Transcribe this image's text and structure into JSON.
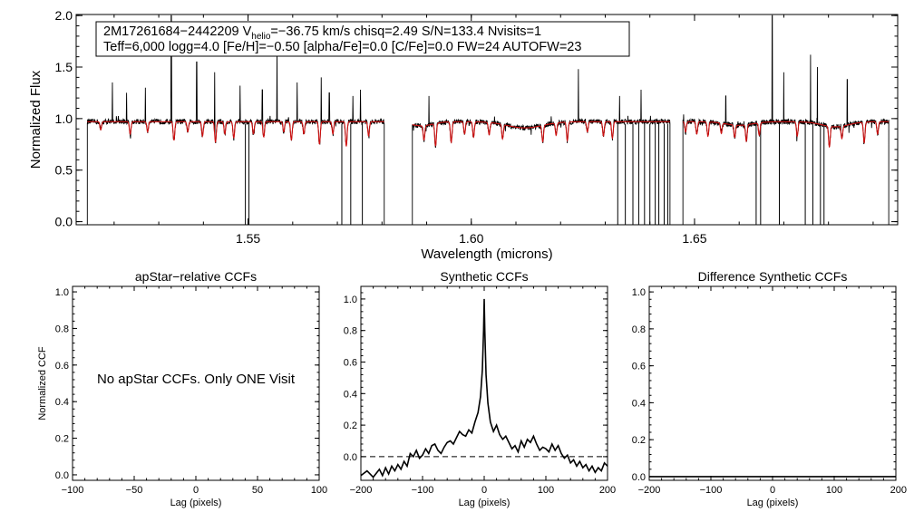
{
  "colors": {
    "observed": "#000000",
    "model": "#d01010",
    "axes": "#000000"
  },
  "chart_data": [
    {
      "type": "line",
      "panel": "spectrum",
      "title": "",
      "xlabel": "Wavelength (microns)",
      "ylabel": "Normalized Flux",
      "xlim": [
        1.5115,
        1.6955
      ],
      "ylim": [
        -0.03,
        2.01
      ],
      "xticks": [
        1.55,
        1.6,
        1.65
      ],
      "xtick_labels": [
        "1.55",
        "1.60",
        "1.65"
      ],
      "yticks": [
        0.0,
        0.5,
        1.0,
        1.5,
        2.0
      ],
      "ytick_labels": [
        "0.0",
        "0.5",
        "1.0",
        "1.5",
        "2.0"
      ],
      "legend_box": {
        "line1_prefix": "2M17261684−2442209  V",
        "line1_sub": "helio",
        "line1_suffix": "=−36.75 km/s  chisq=2.49  S/N=133.4  Nvisits=1",
        "line2": "Teff=6,000 logg=4.0 [Fe/H]=−0.50 [alpha/Fe]=0.0 [C/Fe]=0.0 FW=24 AUTOFW=23"
      },
      "chips": [
        {
          "range": [
            1.514,
            1.5805
          ]
        },
        {
          "range": [
            1.5868,
            1.6445
          ]
        },
        {
          "range": [
            1.6474,
            1.6935
          ]
        }
      ],
      "continuum": 0.97,
      "broad_features": [
        {
          "wavelength": 1.5888,
          "depth": 0.04,
          "width": 0.0025
        },
        {
          "wavelength": 1.612,
          "depth": 0.06,
          "width": 0.004
        },
        {
          "wavelength": 1.66,
          "depth": 0.035,
          "width": 0.003
        },
        {
          "wavelength": 1.6815,
          "depth": 0.05,
          "width": 0.003
        }
      ],
      "series": [
        {
          "name": "observed",
          "color": "#000000",
          "spikes": [
            {
              "wavelength": 1.5196,
              "flux": 1.35
            },
            {
              "wavelength": 1.5228,
              "flux": 1.25
            },
            {
              "wavelength": 1.527,
              "flux": 1.3
            },
            {
              "wavelength": 1.5328,
              "flux": 2.0
            },
            {
              "wavelength": 1.5385,
              "flux": 1.55
            },
            {
              "wavelength": 1.5425,
              "flux": 1.45
            },
            {
              "wavelength": 1.5482,
              "flux": 1.32
            },
            {
              "wavelength": 1.5532,
              "flux": 1.28
            },
            {
              "wavelength": 1.5565,
              "flux": 1.65
            },
            {
              "wavelength": 1.561,
              "flux": 1.35
            },
            {
              "wavelength": 1.5664,
              "flux": 1.4
            },
            {
              "wavelength": 1.5682,
              "flux": 1.25
            },
            {
              "wavelength": 1.5735,
              "flux": 1.22
            },
            {
              "wavelength": 1.5752,
              "flux": 1.28
            },
            {
              "wavelength": 1.5905,
              "flux": 1.22
            },
            {
              "wavelength": 1.624,
              "flux": 1.48
            },
            {
              "wavelength": 1.6332,
              "flux": 1.22
            },
            {
              "wavelength": 1.638,
              "flux": 1.28
            },
            {
              "wavelength": 1.657,
              "flux": 1.22
            },
            {
              "wavelength": 1.6674,
              "flux": 2.0
            },
            {
              "wavelength": 1.67,
              "flux": 1.45
            },
            {
              "wavelength": 1.676,
              "flux": 1.62
            },
            {
              "wavelength": 1.6775,
              "flux": 1.5
            },
            {
              "wavelength": 1.6842,
              "flux": 1.38
            }
          ],
          "dropouts": [
            1.5494,
            1.5502,
            1.571,
            1.573,
            1.5756,
            1.6328,
            1.6345,
            1.6362,
            1.6375,
            1.6388,
            1.64,
            1.6412,
            1.642,
            1.6432,
            1.644,
            1.6638,
            1.6648,
            1.669,
            1.6748,
            1.6765,
            1.6782,
            1.679
          ]
        },
        {
          "name": "model",
          "color": "#d01010",
          "lines": [
            {
              "wavelength": 1.517,
              "depth": 0.08
            },
            {
              "wavelength": 1.5236,
              "depth": 0.12
            },
            {
              "wavelength": 1.5275,
              "depth": 0.1
            },
            {
              "wavelength": 1.5334,
              "depth": 0.18
            },
            {
              "wavelength": 1.5365,
              "depth": 0.1
            },
            {
              "wavelength": 1.5398,
              "depth": 0.14
            },
            {
              "wavelength": 1.5427,
              "depth": 0.2
            },
            {
              "wavelength": 1.5448,
              "depth": 0.12
            },
            {
              "wavelength": 1.5468,
              "depth": 0.16
            },
            {
              "wavelength": 1.5512,
              "depth": 0.12
            },
            {
              "wavelength": 1.5535,
              "depth": 0.15
            },
            {
              "wavelength": 1.558,
              "depth": 0.1
            },
            {
              "wavelength": 1.5597,
              "depth": 0.18
            },
            {
              "wavelength": 1.5625,
              "depth": 0.12
            },
            {
              "wavelength": 1.566,
              "depth": 0.22
            },
            {
              "wavelength": 1.569,
              "depth": 0.12
            },
            {
              "wavelength": 1.572,
              "depth": 0.24
            },
            {
              "wavelength": 1.577,
              "depth": 0.14
            },
            {
              "wavelength": 1.5894,
              "depth": 0.14
            },
            {
              "wavelength": 1.592,
              "depth": 0.22
            },
            {
              "wavelength": 1.5955,
              "depth": 0.2
            },
            {
              "wavelength": 1.5985,
              "depth": 0.12
            },
            {
              "wavelength": 1.6005,
              "depth": 0.15
            },
            {
              "wavelength": 1.604,
              "depth": 0.12
            },
            {
              "wavelength": 1.607,
              "depth": 0.14
            },
            {
              "wavelength": 1.616,
              "depth": 0.16
            },
            {
              "wavelength": 1.619,
              "depth": 0.12
            },
            {
              "wavelength": 1.6215,
              "depth": 0.18
            },
            {
              "wavelength": 1.626,
              "depth": 0.1
            },
            {
              "wavelength": 1.6296,
              "depth": 0.14
            },
            {
              "wavelength": 1.6316,
              "depth": 0.16
            },
            {
              "wavelength": 1.648,
              "depth": 0.1
            },
            {
              "wavelength": 1.6505,
              "depth": 0.12
            },
            {
              "wavelength": 1.653,
              "depth": 0.14
            },
            {
              "wavelength": 1.656,
              "depth": 0.1
            },
            {
              "wavelength": 1.659,
              "depth": 0.12
            },
            {
              "wavelength": 1.6616,
              "depth": 0.16
            },
            {
              "wavelength": 1.6645,
              "depth": 0.12
            },
            {
              "wavelength": 1.673,
              "depth": 0.14
            },
            {
              "wavelength": 1.6802,
              "depth": 0.2
            },
            {
              "wavelength": 1.683,
              "depth": 0.12
            },
            {
              "wavelength": 1.688,
              "depth": 0.2
            },
            {
              "wavelength": 1.691,
              "depth": 0.12
            }
          ]
        }
      ]
    },
    {
      "type": "line",
      "panel": "apstar",
      "title": "apStar−relative CCFs",
      "xlabel": "Lag (pixels)",
      "ylabel": "Normalized CCF",
      "xlim": [
        -100,
        100
      ],
      "ylim": [
        -0.03,
        1.03
      ],
      "xticks": [
        -100,
        -50,
        0,
        50,
        100
      ],
      "xtick_labels": [
        "−100",
        "−50",
        "0",
        "50",
        "100"
      ],
      "yticks": [
        0.0,
        0.2,
        0.4,
        0.6,
        0.8,
        1.0
      ],
      "ytick_labels": [
        "0.0",
        "0.2",
        "0.4",
        "0.6",
        "0.8",
        "1.0"
      ],
      "message": "No apStar CCFs.  Only ONE Visit",
      "series": []
    },
    {
      "type": "line",
      "panel": "synthetic",
      "title": "Synthetic CCFs",
      "xlabel": "Lag (pixels)",
      "ylabel": "",
      "xlim": [
        -200,
        200
      ],
      "ylim": [
        -0.15,
        1.08
      ],
      "xticks": [
        -200,
        -100,
        0,
        100,
        200
      ],
      "xtick_labels": [
        "−200",
        "−100",
        "0",
        "100",
        "200"
      ],
      "yticks": [
        0.0,
        0.2,
        0.4,
        0.6,
        0.8,
        1.0
      ],
      "ytick_labels": [
        "0.0",
        "0.2",
        "0.4",
        "0.6",
        "0.8",
        "1.0"
      ],
      "reference_line": {
        "y": 0.0,
        "style": "dashed"
      },
      "series": [
        {
          "name": "CCF",
          "x": [
            -200,
            -190,
            -180,
            -170,
            -165,
            -160,
            -155,
            -150,
            -145,
            -140,
            -135,
            -130,
            -125,
            -120,
            -115,
            -110,
            -105,
            -100,
            -95,
            -90,
            -85,
            -80,
            -75,
            -70,
            -65,
            -60,
            -55,
            -50,
            -45,
            -40,
            -35,
            -30,
            -25,
            -20,
            -15,
            -10,
            -6,
            -3,
            -1,
            0,
            1,
            3,
            6,
            10,
            15,
            20,
            25,
            30,
            35,
            40,
            45,
            50,
            55,
            60,
            65,
            70,
            75,
            80,
            85,
            90,
            95,
            100,
            105,
            110,
            115,
            120,
            125,
            130,
            135,
            140,
            145,
            150,
            155,
            160,
            165,
            170,
            175,
            180,
            185,
            190,
            195,
            200
          ],
          "y": [
            -0.12,
            -0.09,
            -0.13,
            -0.08,
            -0.12,
            -0.07,
            -0.11,
            -0.06,
            -0.09,
            -0.05,
            -0.08,
            -0.03,
            -0.06,
            0.02,
            0.0,
            0.04,
            -0.01,
            0.01,
            0.05,
            0.02,
            0.07,
            0.08,
            0.04,
            0.02,
            0.06,
            0.09,
            0.1,
            0.08,
            0.12,
            0.16,
            0.14,
            0.13,
            0.17,
            0.15,
            0.22,
            0.28,
            0.38,
            0.55,
            0.8,
            1.0,
            0.8,
            0.52,
            0.34,
            0.22,
            0.16,
            0.2,
            0.14,
            0.11,
            0.13,
            0.09,
            0.05,
            0.07,
            0.03,
            0.1,
            0.06,
            0.11,
            0.09,
            0.13,
            0.08,
            0.04,
            0.06,
            0.05,
            0.03,
            0.08,
            0.04,
            0.07,
            0.02,
            -0.01,
            0.01,
            -0.04,
            -0.02,
            -0.06,
            -0.03,
            -0.07,
            -0.05,
            -0.09,
            -0.06,
            -0.1,
            -0.07,
            -0.09,
            -0.04,
            -0.06
          ]
        }
      ]
    },
    {
      "type": "line",
      "panel": "difference",
      "title": "Difference Synthetic CCFs",
      "xlabel": "Lag (pixels)",
      "ylabel": "",
      "xlim": [
        -200,
        200
      ],
      "ylim": [
        -0.02,
        1.03
      ],
      "xticks": [
        -200,
        -100,
        0,
        100,
        200
      ],
      "xtick_labels": [
        "−200",
        "−100",
        "0",
        "100",
        "200"
      ],
      "yticks": [
        0.0,
        0.2,
        0.4,
        0.6,
        0.8,
        1.0
      ],
      "ytick_labels": [
        "0.0",
        "0.2",
        "0.4",
        "0.6",
        "0.8",
        "1.0"
      ],
      "series": [
        {
          "name": "difference",
          "x": [
            -200,
            200
          ],
          "y": [
            0.0,
            0.0
          ]
        }
      ]
    }
  ]
}
